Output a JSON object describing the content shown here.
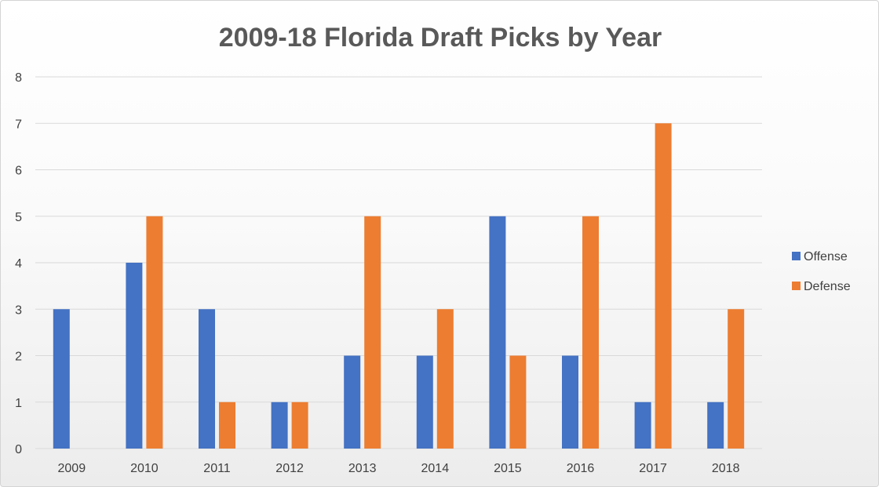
{
  "chart_data": {
    "type": "bar",
    "title": "2009-18 Florida Draft Picks by Year",
    "xlabel": "",
    "ylabel": "",
    "categories": [
      "2009",
      "2010",
      "2011",
      "2012",
      "2013",
      "2014",
      "2015",
      "2016",
      "2017",
      "2018"
    ],
    "series": [
      {
        "name": "Offense",
        "color": "#4472C4",
        "values": [
          3,
          4,
          3,
          1,
          2,
          2,
          5,
          2,
          1,
          1
        ]
      },
      {
        "name": "Defense",
        "color": "#ED7D31",
        "values": [
          0,
          5,
          1,
          1,
          5,
          3,
          2,
          5,
          7,
          3
        ]
      }
    ],
    "ylim": [
      0,
      8
    ],
    "yticks": [
      0,
      1,
      2,
      3,
      4,
      5,
      6,
      7,
      8
    ],
    "grid": true,
    "legend_position": "right"
  }
}
